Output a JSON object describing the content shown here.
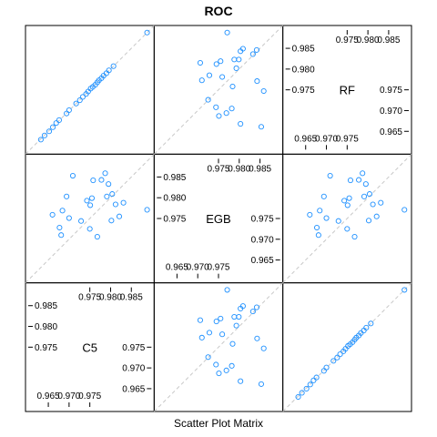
{
  "chart_data": {
    "type": "scatter",
    "title": "ROC",
    "xlabel": "Scatter Plot Matrix",
    "variables": [
      "C5",
      "EGB",
      "RF"
    ],
    "axis_range": [
      0.9595,
      0.9905
    ],
    "ticks_high": [
      0.975,
      0.98,
      0.985
    ],
    "ticks_low": [
      0.965,
      0.97,
      0.975
    ],
    "tick_labels_high": [
      "0.975",
      "0.980",
      "0.985"
    ],
    "tick_labels_low": [
      "0.965",
      "0.970",
      "0.975"
    ],
    "reference_line": "y = x",
    "point_color": "#1e90ff",
    "line_color": "#c8c8c8",
    "panel_border": "#000000",
    "series": [
      {
        "name": "C5 vs RF",
        "x": [
          0.9632,
          0.9641,
          0.9652,
          0.9661,
          0.9669,
          0.9676,
          0.9694,
          0.97,
          0.9717,
          0.9726,
          0.9733,
          0.9741,
          0.9746,
          0.9752,
          0.9757,
          0.9763,
          0.9768,
          0.9772,
          0.9778,
          0.9783,
          0.979,
          0.9796,
          0.9807,
          0.9888
        ],
        "y": [
          0.963,
          0.964,
          0.965,
          0.966,
          0.967,
          0.9677,
          0.9693,
          0.9701,
          0.9717,
          0.9725,
          0.9733,
          0.974,
          0.9746,
          0.9753,
          0.9757,
          0.9762,
          0.9768,
          0.9773,
          0.9778,
          0.9784,
          0.979,
          0.9797,
          0.9807,
          0.9888
        ]
      },
      {
        "name": "EGB vs RF",
        "x": [
          0.9771,
          0.9809,
          0.9842,
          0.9803,
          0.9833,
          0.9799,
          0.9788,
          0.9755,
          0.9745,
          0.9706,
          0.9793,
          0.9728,
          0.9759,
          0.971,
          0.9843,
          0.9784,
          0.9859,
          0.9725,
          0.9744,
          0.9782,
          0.9769,
          0.9751,
          0.9803,
          0.9853
        ],
        "y": [
          0.9888,
          0.9849,
          0.9846,
          0.9843,
          0.9836,
          0.9823,
          0.9823,
          0.9819,
          0.9812,
          0.9815,
          0.9802,
          0.9785,
          0.9781,
          0.9773,
          0.9771,
          0.9758,
          0.9747,
          0.9726,
          0.9708,
          0.9705,
          0.9694,
          0.9687,
          0.9668,
          0.9661
        ]
      },
      {
        "name": "C5 vs EGB",
        "x": [
          0.9888,
          0.9804,
          0.9758,
          0.9791,
          0.9795,
          0.9755,
          0.9831,
          0.9821,
          0.9802,
          0.9768,
          0.9743,
          0.9677,
          0.966,
          0.9681,
          0.9778,
          0.9812,
          0.9787,
          0.975,
          0.9729,
          0.9751,
          0.9684,
          0.97,
          0.9694,
          0.9709
        ],
        "y": [
          0.9771,
          0.9809,
          0.9842,
          0.9803,
          0.9833,
          0.9799,
          0.9788,
          0.9755,
          0.9745,
          0.9706,
          0.9793,
          0.9728,
          0.9759,
          0.971,
          0.9843,
          0.9784,
          0.9859,
          0.9725,
          0.9744,
          0.9782,
          0.9769,
          0.9751,
          0.9803,
          0.9853
        ]
      }
    ]
  }
}
